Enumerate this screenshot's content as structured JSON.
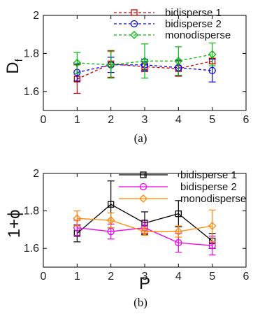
{
  "chart_data": [
    {
      "type": "line",
      "caption": "(a)",
      "xlabel": "",
      "ylabel": "D_f",
      "xlim": [
        0,
        6
      ],
      "ylim": [
        1.5,
        2.0
      ],
      "xticks": [
        "0",
        "1",
        "2",
        "3",
        "4",
        "5",
        "6"
      ],
      "yticks": [
        "1.6",
        "1.8",
        "2"
      ],
      "legend_position": "top-right",
      "x": [
        1,
        2,
        3,
        4,
        5
      ],
      "series": [
        {
          "name": "bidisperse 1",
          "color": "#cc0000",
          "marker": "square",
          "style": "dashed",
          "values": [
            1.665,
            1.745,
            1.73,
            1.72,
            1.76
          ],
          "errors": [
            0.075,
            0.07,
            0.025,
            0.04,
            0.015
          ]
        },
        {
          "name": "bidisperse 2",
          "color": "#0000ee",
          "marker": "circle",
          "style": "dashed",
          "values": [
            1.7,
            1.74,
            1.74,
            1.725,
            1.71
          ],
          "errors": [
            0.045,
            0.04,
            0.03,
            0.04,
            0.06
          ]
        },
        {
          "name": "monodisperse",
          "color": "#00bb00",
          "marker": "diamond",
          "style": "dashed",
          "values": [
            1.75,
            1.74,
            1.76,
            1.76,
            1.795
          ],
          "errors": [
            0.055,
            0.07,
            0.09,
            0.075,
            0.06
          ]
        }
      ]
    },
    {
      "type": "line",
      "caption": "(b)",
      "xlabel": "P",
      "ylabel": "1+ϕ",
      "xlim": [
        0,
        6
      ],
      "ylim": [
        1.5,
        2.0
      ],
      "xticks": [
        "0",
        "1",
        "2",
        "3",
        "4",
        "5",
        "6"
      ],
      "yticks": [
        "1.6",
        "1.8",
        "2"
      ],
      "legend_position": "top-right",
      "x": [
        1,
        2,
        3,
        4,
        5
      ],
      "series": [
        {
          "name": "bidisperse 1",
          "color": "#000000",
          "marker": "square",
          "style": "solid",
          "values": [
            1.68,
            1.835,
            1.735,
            1.785,
            1.64
          ],
          "errors": [
            0.045,
            0.125,
            0.06,
            0.07,
            0.04
          ]
        },
        {
          "name": "bidisperse 2",
          "color": "#ee00ee",
          "marker": "circle",
          "style": "solid",
          "values": [
            1.71,
            1.69,
            1.71,
            1.63,
            1.615
          ],
          "errors": [
            0.04,
            0.04,
            0.03,
            0.05,
            0.05
          ]
        },
        {
          "name": "monodisperse",
          "color": "#ff8800",
          "marker": "diamond",
          "style": "solid",
          "values": [
            1.76,
            1.75,
            1.69,
            1.69,
            1.72
          ],
          "errors": [
            0.04,
            0.04,
            0.02,
            0.03,
            0.085
          ]
        }
      ]
    }
  ]
}
